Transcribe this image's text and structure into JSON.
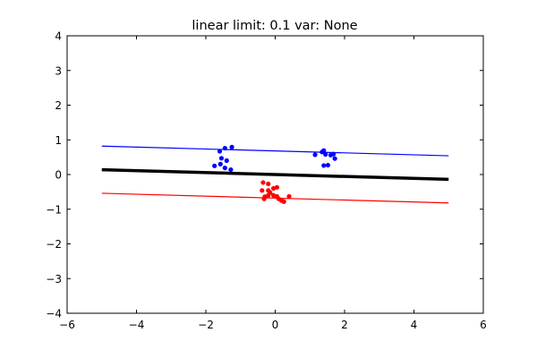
{
  "chart_data": {
    "type": "scatter",
    "title": "linear limit: 0.1 var: None",
    "xlabel": "",
    "ylabel": "",
    "xlim": [
      -6,
      6
    ],
    "ylim": [
      -4,
      4
    ],
    "xticks": [
      -6,
      -4,
      -2,
      0,
      2,
      4,
      6
    ],
    "yticks": [
      -4,
      -3,
      -2,
      -1,
      0,
      1,
      2,
      3,
      4
    ],
    "xtick_labels": [
      "−6",
      "−4",
      "−2",
      "0",
      "2",
      "4",
      "6"
    ],
    "ytick_labels": [
      "−4",
      "−3",
      "−2",
      "−1",
      "0",
      "1",
      "2",
      "3",
      "4"
    ],
    "grid": false,
    "legend": "none",
    "lines": [
      {
        "color": "#0000ff",
        "width": "thin",
        "x": [
          -5,
          5
        ],
        "y": [
          0.82,
          0.54
        ]
      },
      {
        "color": "#000000",
        "width": "thick",
        "x": [
          -5,
          5
        ],
        "y": [
          0.14,
          -0.14
        ]
      },
      {
        "color": "#ff0000",
        "width": "thin",
        "x": [
          -5,
          5
        ],
        "y": [
          -0.54,
          -0.82
        ]
      }
    ],
    "series": [
      {
        "color": "#0000ff",
        "points": [
          [
            -1.6,
            0.67
          ],
          [
            -1.45,
            0.76
          ],
          [
            -1.25,
            0.79
          ],
          [
            -1.55,
            0.47
          ],
          [
            -1.4,
            0.4
          ],
          [
            -1.58,
            0.3
          ],
          [
            -1.75,
            0.25
          ],
          [
            -1.45,
            0.19
          ],
          [
            -1.28,
            0.14
          ],
          [
            1.15,
            0.57
          ],
          [
            1.35,
            0.65
          ],
          [
            1.4,
            0.69
          ],
          [
            1.45,
            0.58
          ],
          [
            1.6,
            0.56
          ],
          [
            1.68,
            0.59
          ],
          [
            1.72,
            0.46
          ],
          [
            1.4,
            0.26
          ],
          [
            1.52,
            0.27
          ]
        ]
      },
      {
        "color": "#ff0000",
        "points": [
          [
            -0.35,
            -0.23
          ],
          [
            -0.2,
            -0.27
          ],
          [
            -0.05,
            -0.4
          ],
          [
            0.05,
            -0.37
          ],
          [
            -0.38,
            -0.46
          ],
          [
            -0.2,
            -0.46
          ],
          [
            -0.15,
            -0.52
          ],
          [
            -0.3,
            -0.64
          ],
          [
            -0.2,
            -0.6
          ],
          [
            -0.05,
            -0.6
          ],
          [
            0.05,
            -0.63
          ],
          [
            0.1,
            -0.7
          ],
          [
            0.18,
            -0.75
          ],
          [
            0.25,
            -0.78
          ],
          [
            0.4,
            -0.63
          ],
          [
            -0.32,
            -0.7
          ]
        ]
      }
    ]
  }
}
